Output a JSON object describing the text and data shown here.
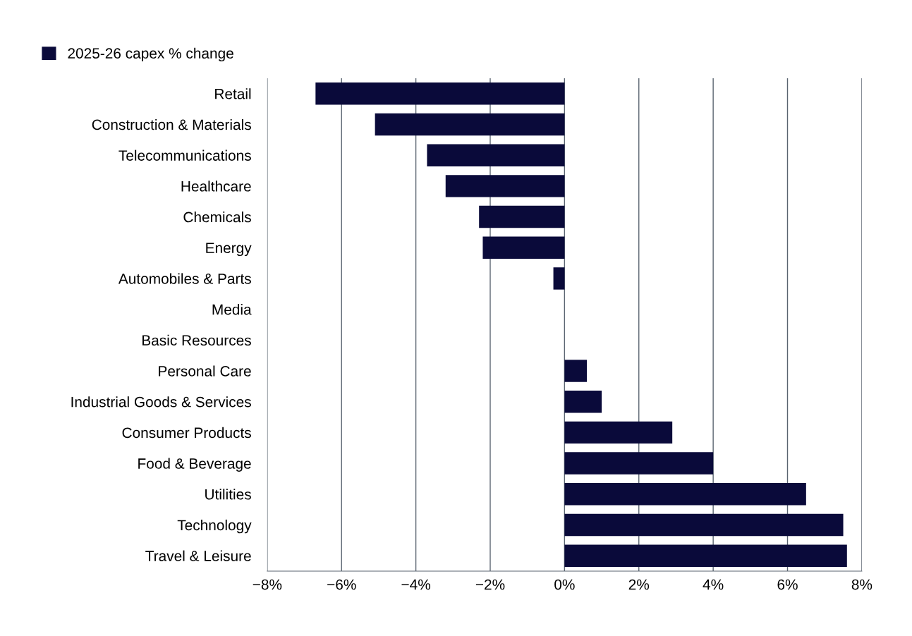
{
  "chart_data": {
    "type": "bar",
    "orientation": "horizontal",
    "categories": [
      "Retail",
      "Construction & Materials",
      "Telecommunications",
      "Healthcare",
      "Chemicals",
      "Energy",
      "Automobiles & Parts",
      "Media",
      "Basic Resources",
      "Personal Care",
      "Industrial Goods & Services",
      "Consumer Products",
      "Food & Beverage",
      "Utilities",
      "Technology",
      "Travel & Leisure"
    ],
    "series": [
      {
        "name": "2025-26 capex % change",
        "color": "#0a0a3a",
        "values": [
          -6.7,
          -5.1,
          -3.7,
          -3.2,
          -2.3,
          -2.2,
          -0.3,
          0,
          0,
          0.6,
          1.0,
          2.9,
          4.0,
          6.5,
          7.5,
          7.6
        ]
      }
    ],
    "xlim": [
      -8,
      8
    ],
    "xticks": [
      {
        "value": -8,
        "label": "−8%"
      },
      {
        "value": -6,
        "label": "−6%"
      },
      {
        "value": -4,
        "label": "−4%"
      },
      {
        "value": -2,
        "label": "−2%"
      },
      {
        "value": 0,
        "label": "0%"
      },
      {
        "value": 2,
        "label": "2%"
      },
      {
        "value": 4,
        "label": "4%"
      },
      {
        "value": 6,
        "label": "6%"
      },
      {
        "value": 8,
        "label": "8%"
      }
    ],
    "grid": "x",
    "legend": "top left"
  }
}
